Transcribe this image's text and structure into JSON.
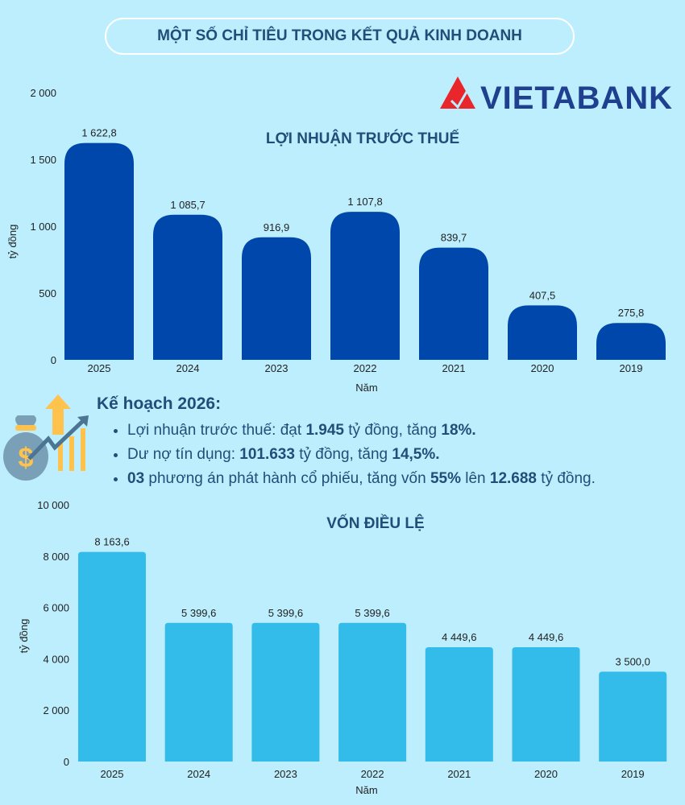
{
  "header": {
    "title": "MỘT SỐ CHỈ TIÊU TRONG KẾT QUẢ KINH DOANH"
  },
  "logo": {
    "text": "VIETABANK",
    "colors": {
      "mark": "#e8262c",
      "text": "#1f3f8f"
    }
  },
  "plan": {
    "title": "Kế hoạch 2026:",
    "icon": "money-bag-growth-icon",
    "items": [
      {
        "parts": [
          "Lợi nhuận trước thuế: đạt ",
          "1.945",
          " tỷ đồng, tăng ",
          "18%."
        ]
      },
      {
        "parts": [
          "Dư nợ tín dụng: ",
          "101.633",
          " tỷ đồng, tăng ",
          "14,5%."
        ]
      },
      {
        "parts": [
          "03",
          " phương án phát hành cổ phiếu, tăng vốn ",
          "55%",
          " lên ",
          "12.688",
          " tỷ đồng."
        ]
      }
    ]
  },
  "chart_data": [
    {
      "type": "bar",
      "title": "LỢI NHUẬN TRƯỚC THUẾ",
      "xlabel": "Năm",
      "ylabel": "tỷ đồng",
      "ylim": [
        0,
        2000
      ],
      "yticks": [
        0,
        500,
        1000,
        1500,
        2000
      ],
      "ytick_labels": [
        "0",
        "500",
        "1 000",
        "1 500",
        "2 000"
      ],
      "categories": [
        "2025",
        "2024",
        "2023",
        "2022",
        "2021",
        "2020",
        "2019"
      ],
      "values": [
        1622.8,
        1085.7,
        916.9,
        1107.8,
        839.7,
        407.5,
        275.8
      ],
      "labels": [
        "1 622,8",
        "1 085,7",
        "916,9",
        "1 107,8",
        "839,7",
        "407,5",
        "275,8"
      ],
      "color": "#0047ab",
      "grid": false
    },
    {
      "type": "bar",
      "title": "VỐN ĐIỀU LỆ",
      "xlabel": "Năm",
      "ylabel": "tỷ đồng",
      "ylim": [
        0,
        10000
      ],
      "yticks": [
        0,
        2000,
        4000,
        6000,
        8000,
        10000
      ],
      "ytick_labels": [
        "0",
        "2 000",
        "4 000",
        "6 000",
        "8 000",
        "10 000"
      ],
      "categories": [
        "2025",
        "2024",
        "2023",
        "2022",
        "2021",
        "2020",
        "2019"
      ],
      "values": [
        8163.6,
        5399.6,
        5399.6,
        5399.6,
        4449.6,
        4449.6,
        3500.0
      ],
      "labels": [
        "8 163,6",
        "5 399,6",
        "5 399,6",
        "5 399,6",
        "4 449,6",
        "4 449,6",
        "3 500,0"
      ],
      "color": "#33bbea",
      "grid": false
    }
  ]
}
